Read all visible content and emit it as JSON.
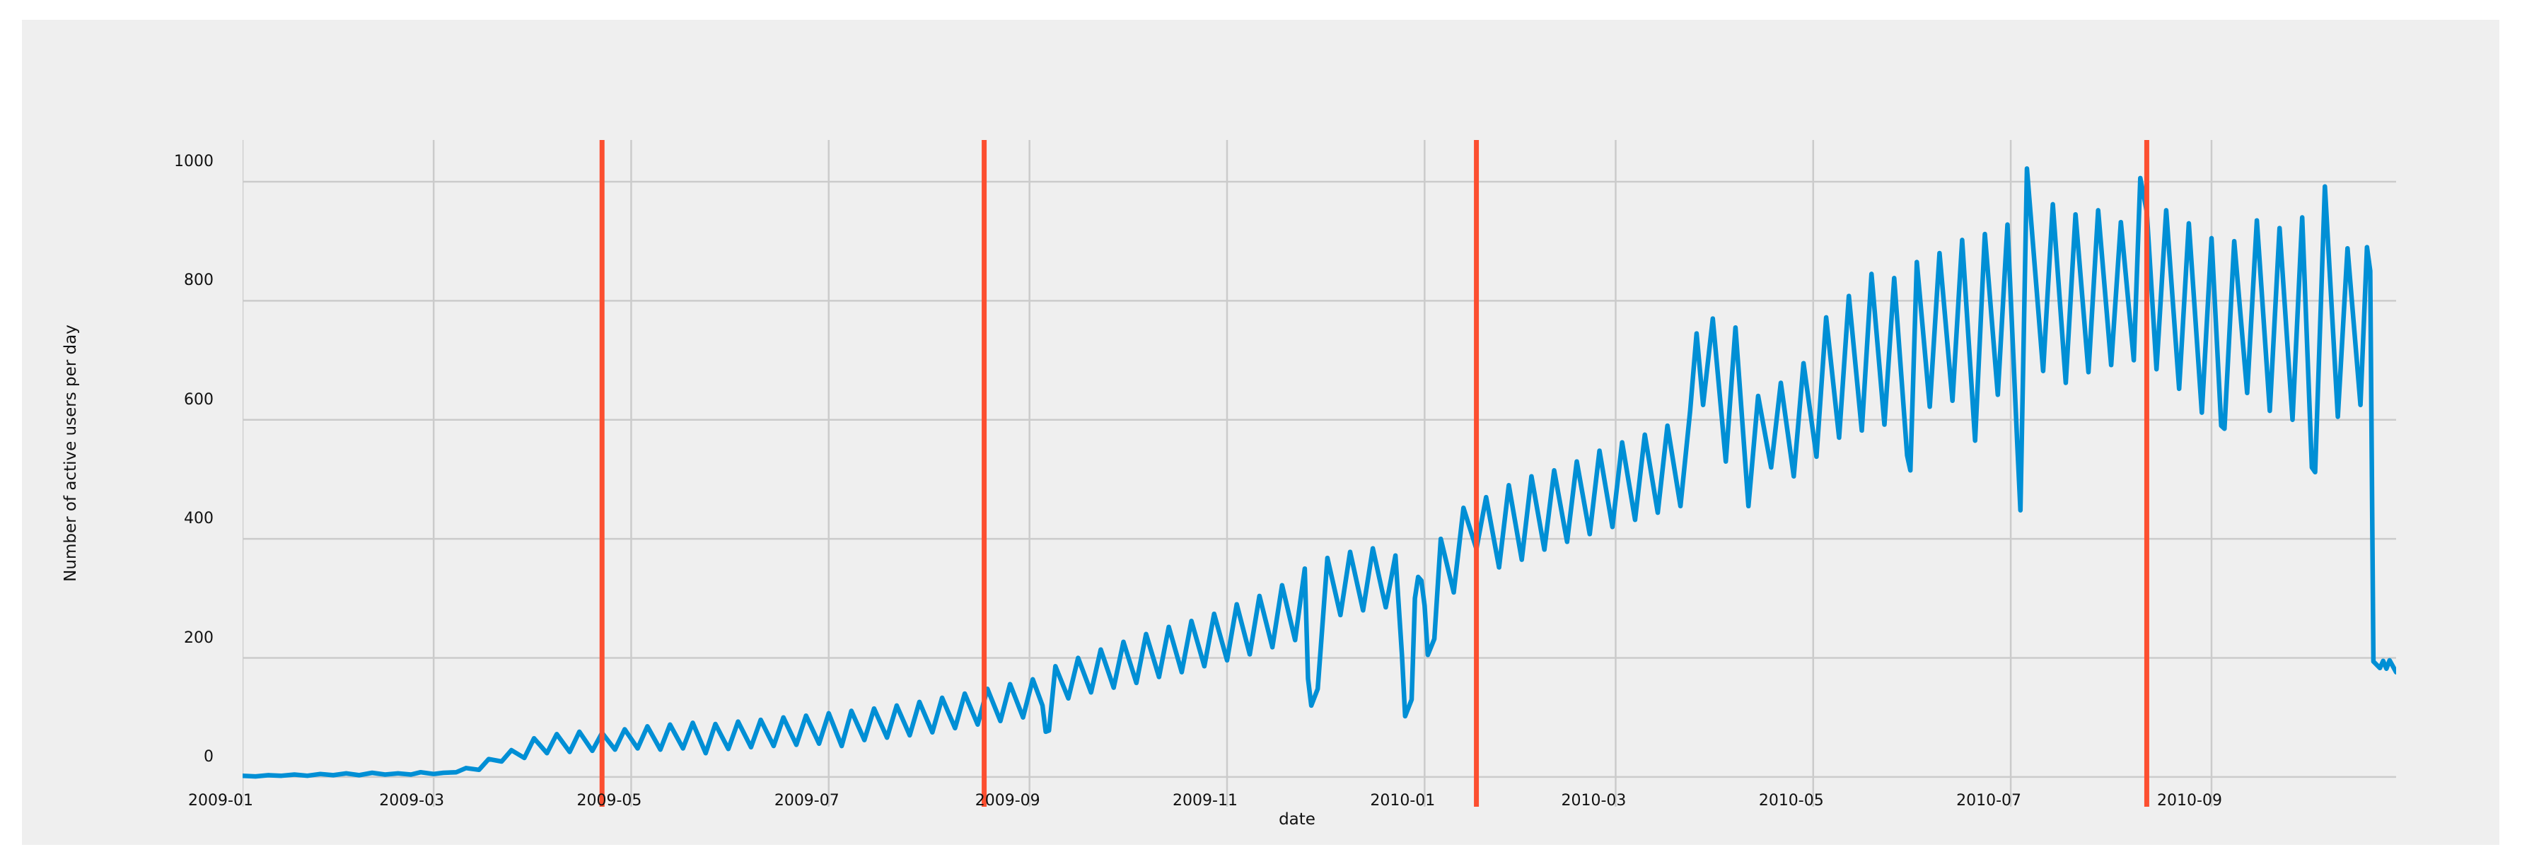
{
  "page": {
    "background": "#ffffff"
  },
  "figure": {
    "background": "#efefef",
    "grid_color": "#cbcbcb",
    "text_color": "#111111"
  },
  "chart_data": {
    "type": "line",
    "title": "",
    "xlabel": "date",
    "ylabel": "Number of active users per day",
    "grid": true,
    "legend": false,
    "x_axis": {
      "unit": "days since 2009-01-01",
      "start_date": "2009-01-01",
      "end_date": "2010-10-28",
      "range": [
        0,
        665
      ],
      "ticks": [
        {
          "day": 0,
          "label": "2009-01"
        },
        {
          "day": 59,
          "label": "2009-03"
        },
        {
          "day": 120,
          "label": "2009-05"
        },
        {
          "day": 181,
          "label": "2009-07"
        },
        {
          "day": 243,
          "label": "2009-09"
        },
        {
          "day": 304,
          "label": "2009-11"
        },
        {
          "day": 365,
          "label": "2010-01"
        },
        {
          "day": 424,
          "label": "2010-03"
        },
        {
          "day": 485,
          "label": "2010-05"
        },
        {
          "day": 546,
          "label": "2010-07"
        },
        {
          "day": 608,
          "label": "2010-09"
        }
      ]
    },
    "y_axis": {
      "range": [
        -50,
        1070
      ],
      "ticks": [
        0,
        200,
        400,
        600,
        800,
        1000
      ]
    },
    "event_lines": [
      {
        "day": 111,
        "date": "2009-04-22",
        "color": "#fc4f30"
      },
      {
        "day": 229,
        "date": "2009-08-18",
        "color": "#fc4f30"
      },
      {
        "day": 381,
        "date": "2010-01-17",
        "color": "#fc4f30"
      },
      {
        "day": 588,
        "date": "2010-08-12",
        "color": "#fc4f30"
      }
    ],
    "series": [
      {
        "name": "active users per day",
        "color": "#008fd5",
        "line_width": 6.5,
        "points": [
          [
            0,
            2
          ],
          [
            4,
            1
          ],
          [
            8,
            3
          ],
          [
            12,
            2
          ],
          [
            16,
            4
          ],
          [
            20,
            2
          ],
          [
            24,
            5
          ],
          [
            28,
            3
          ],
          [
            32,
            6
          ],
          [
            36,
            3
          ],
          [
            40,
            7
          ],
          [
            44,
            4
          ],
          [
            48,
            6
          ],
          [
            52,
            4
          ],
          [
            55,
            8
          ],
          [
            59,
            5
          ],
          [
            62,
            7
          ],
          [
            66,
            8
          ],
          [
            69,
            15
          ],
          [
            73,
            12
          ],
          [
            76,
            30
          ],
          [
            80,
            26
          ],
          [
            83,
            45
          ],
          [
            87,
            32
          ],
          [
            90,
            65
          ],
          [
            94,
            40
          ],
          [
            97,
            72
          ],
          [
            101,
            42
          ],
          [
            104,
            76
          ],
          [
            108,
            44
          ],
          [
            111,
            74
          ],
          [
            115,
            46
          ],
          [
            118,
            80
          ],
          [
            122,
            48
          ],
          [
            125,
            85
          ],
          [
            129,
            46
          ],
          [
            132,
            88
          ],
          [
            136,
            48
          ],
          [
            139,
            91
          ],
          [
            143,
            40
          ],
          [
            146,
            89
          ],
          [
            150,
            47
          ],
          [
            153,
            93
          ],
          [
            157,
            50
          ],
          [
            160,
            96
          ],
          [
            164,
            52
          ],
          [
            167,
            100
          ],
          [
            171,
            54
          ],
          [
            174,
            103
          ],
          [
            178,
            56
          ],
          [
            181,
            107
          ],
          [
            185,
            52
          ],
          [
            188,
            111
          ],
          [
            192,
            62
          ],
          [
            195,
            115
          ],
          [
            199,
            66
          ],
          [
            202,
            120
          ],
          [
            206,
            70
          ],
          [
            209,
            126
          ],
          [
            213,
            75
          ],
          [
            216,
            133
          ],
          [
            220,
            82
          ],
          [
            223,
            140
          ],
          [
            227,
            88
          ],
          [
            230,
            148
          ],
          [
            234,
            94
          ],
          [
            237,
            156
          ],
          [
            241,
            100
          ],
          [
            244,
            164
          ],
          [
            247,
            120
          ],
          [
            248,
            76
          ],
          [
            249,
            78
          ],
          [
            251,
            186
          ],
          [
            255,
            132
          ],
          [
            258,
            200
          ],
          [
            262,
            142
          ],
          [
            265,
            214
          ],
          [
            269,
            150
          ],
          [
            272,
            227
          ],
          [
            276,
            158
          ],
          [
            279,
            240
          ],
          [
            283,
            168
          ],
          [
            286,
            252
          ],
          [
            290,
            176
          ],
          [
            293,
            262
          ],
          [
            297,
            186
          ],
          [
            300,
            274
          ],
          [
            304,
            196
          ],
          [
            307,
            290
          ],
          [
            311,
            206
          ],
          [
            314,
            304
          ],
          [
            318,
            218
          ],
          [
            321,
            322
          ],
          [
            325,
            230
          ],
          [
            328,
            350
          ],
          [
            329,
            165
          ],
          [
            330,
            120
          ],
          [
            332,
            148
          ],
          [
            335,
            368
          ],
          [
            339,
            272
          ],
          [
            342,
            378
          ],
          [
            346,
            280
          ],
          [
            349,
            384
          ],
          [
            353,
            285
          ],
          [
            356,
            372
          ],
          [
            358,
            205
          ],
          [
            359,
            102
          ],
          [
            361,
            130
          ],
          [
            362,
            300
          ],
          [
            363,
            336
          ],
          [
            364,
            330
          ],
          [
            365,
            288
          ],
          [
            366,
            205
          ],
          [
            368,
            232
          ],
          [
            370,
            400
          ],
          [
            374,
            310
          ],
          [
            377,
            452
          ],
          [
            381,
            383
          ],
          [
            384,
            470
          ],
          [
            388,
            352
          ],
          [
            391,
            490
          ],
          [
            395,
            365
          ],
          [
            398,
            505
          ],
          [
            402,
            382
          ],
          [
            405,
            515
          ],
          [
            409,
            395
          ],
          [
            412,
            530
          ],
          [
            416,
            408
          ],
          [
            419,
            548
          ],
          [
            423,
            420
          ],
          [
            426,
            562
          ],
          [
            430,
            432
          ],
          [
            433,
            575
          ],
          [
            437,
            444
          ],
          [
            440,
            590
          ],
          [
            444,
            455
          ],
          [
            447,
            615
          ],
          [
            449,
            745
          ],
          [
            451,
            625
          ],
          [
            454,
            770
          ],
          [
            458,
            530
          ],
          [
            461,
            755
          ],
          [
            465,
            455
          ],
          [
            468,
            640
          ],
          [
            472,
            520
          ],
          [
            475,
            662
          ],
          [
            479,
            505
          ],
          [
            482,
            695
          ],
          [
            486,
            538
          ],
          [
            489,
            772
          ],
          [
            493,
            570
          ],
          [
            496,
            808
          ],
          [
            500,
            582
          ],
          [
            503,
            845
          ],
          [
            507,
            592
          ],
          [
            510,
            838
          ],
          [
            514,
            540
          ],
          [
            515,
            515
          ],
          [
            517,
            865
          ],
          [
            521,
            622
          ],
          [
            524,
            880
          ],
          [
            528,
            632
          ],
          [
            531,
            902
          ],
          [
            535,
            565
          ],
          [
            538,
            912
          ],
          [
            542,
            642
          ],
          [
            545,
            928
          ],
          [
            548,
            560
          ],
          [
            549,
            448
          ],
          [
            551,
            1022
          ],
          [
            556,
            682
          ],
          [
            559,
            962
          ],
          [
            563,
            662
          ],
          [
            566,
            945
          ],
          [
            570,
            680
          ],
          [
            573,
            952
          ],
          [
            577,
            692
          ],
          [
            580,
            932
          ],
          [
            584,
            700
          ],
          [
            586,
            1006
          ],
          [
            588,
            950
          ],
          [
            591,
            685
          ],
          [
            594,
            952
          ],
          [
            598,
            652
          ],
          [
            601,
            930
          ],
          [
            605,
            612
          ],
          [
            608,
            905
          ],
          [
            611,
            590
          ],
          [
            612,
            585
          ],
          [
            615,
            900
          ],
          [
            619,
            645
          ],
          [
            622,
            935
          ],
          [
            626,
            615
          ],
          [
            629,
            922
          ],
          [
            633,
            600
          ],
          [
            636,
            940
          ],
          [
            639,
            520
          ],
          [
            640,
            512
          ],
          [
            643,
            992
          ],
          [
            647,
            605
          ],
          [
            650,
            888
          ],
          [
            654,
            625
          ],
          [
            656,
            890
          ],
          [
            657,
            850
          ],
          [
            658,
            194
          ],
          [
            660,
            183
          ],
          [
            661,
            195
          ],
          [
            662,
            182
          ],
          [
            663,
            196
          ],
          [
            665,
            176
          ]
        ]
      }
    ]
  }
}
